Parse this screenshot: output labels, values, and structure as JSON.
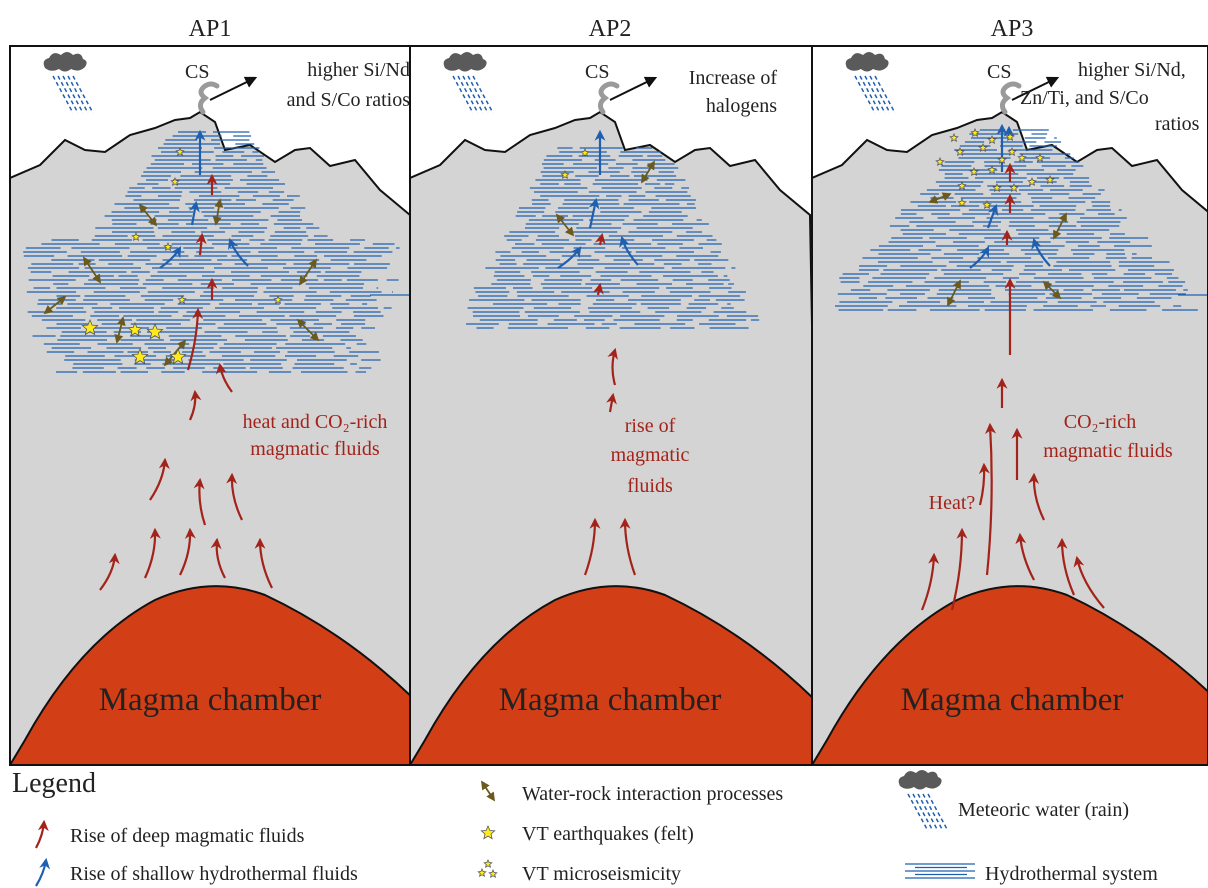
{
  "panels": [
    {
      "title": "AP1",
      "vent": "CS",
      "note": [
        "higher Si/Nd",
        "and S/Co ratios"
      ],
      "fluids": [
        "heat and CO₂-rich",
        "magmatic fluids"
      ],
      "chamber": "Magma chamber"
    },
    {
      "title": "AP2",
      "vent": "CS",
      "note": [
        "Increase of",
        "halogens"
      ],
      "fluids": [
        "rise of",
        "magmatic",
        "fluids"
      ],
      "chamber": "Magma chamber"
    },
    {
      "title": "AP3",
      "vent": "CS",
      "note": [
        "higher Si/Nd,",
        "Zn/Ti, and S/Co",
        "ratios"
      ],
      "fluids": [
        "CO₂-rich",
        "magmatic fluids"
      ],
      "extra": "Heat?",
      "chamber": "Magma chamber"
    }
  ],
  "legend": {
    "title": "Legend",
    "items": [
      "Rise of deep magmatic fluids",
      "Rise of shallow hydrothermal fluids",
      "Water-rock interaction processes",
      "VT earthquakes (felt)",
      "VT microseismicity",
      "Meteoric water (rain)",
      "Hydrothermal system"
    ]
  }
}
